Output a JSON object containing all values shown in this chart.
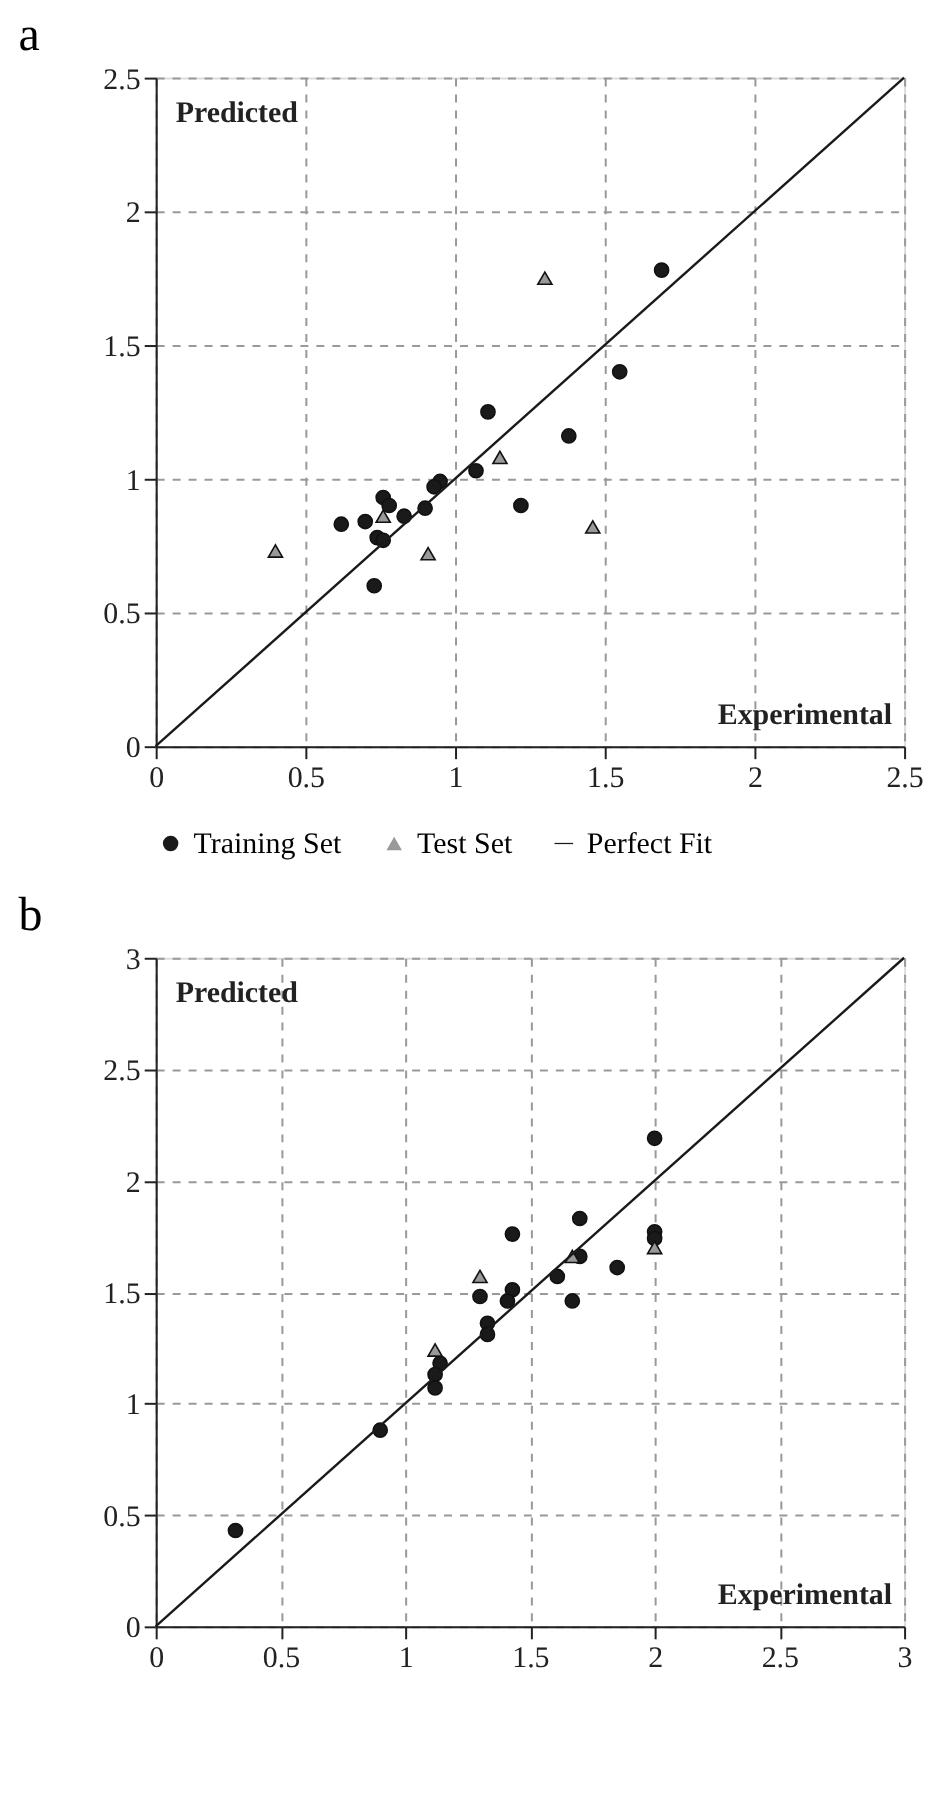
{
  "chart_data": [
    {
      "type": "scatter",
      "title": "a",
      "xlim": [
        0,
        2.5
      ],
      "ylim": [
        0,
        2.5
      ],
      "xticks": [
        0,
        0.5,
        1,
        1.5,
        2,
        2.5
      ],
      "yticks": [
        0,
        0.5,
        1,
        1.5,
        2,
        2.5
      ],
      "grid": true,
      "legend": "bottom",
      "annotations": [
        "Predicted",
        "Experimental"
      ],
      "series": [
        {
          "name": "Training Set",
          "marker": "circle",
          "color": "#1a1a1a",
          "x": [
            1.69,
            1.55,
            1.11,
            1.38,
            1.07,
            0.95,
            0.93,
            1.22,
            0.9,
            0.83,
            0.76,
            0.78,
            0.7,
            0.62,
            0.74,
            0.76,
            0.73
          ],
          "values": [
            1.78,
            1.4,
            1.25,
            1.16,
            1.03,
            0.99,
            0.97,
            0.9,
            0.89,
            0.86,
            0.93,
            0.9,
            0.84,
            0.83,
            0.78,
            0.77,
            0.6
          ]
        },
        {
          "name": "Test Set",
          "marker": "triangle",
          "color": "#999999",
          "x": [
            1.3,
            1.15,
            0.76,
            1.46,
            0.91,
            0.4
          ],
          "values": [
            1.75,
            1.08,
            0.86,
            0.82,
            0.72,
            0.73
          ]
        },
        {
          "name": "Perfect Fit",
          "type": "line",
          "marker": "none",
          "color": "#1a1a1a",
          "x": [
            0,
            2.5
          ],
          "values": [
            0,
            2.5
          ]
        }
      ]
    },
    {
      "type": "scatter",
      "title": "b",
      "xlim": [
        0,
        3
      ],
      "ylim": [
        0,
        3
      ],
      "xticks": [
        0,
        0.5,
        1,
        1.5,
        2,
        2.5,
        3
      ],
      "yticks": [
        0,
        0.5,
        1,
        1.5,
        2,
        2.5,
        3
      ],
      "grid": true,
      "annotations": [
        "Predicted",
        "Experimental"
      ],
      "series": [
        {
          "marker": "circle",
          "color": "#1a1a1a",
          "x": [
            2.0,
            2.0,
            2.0,
            1.7,
            1.7,
            1.43,
            1.85,
            1.61,
            1.67,
            1.43,
            1.41,
            1.3,
            1.33,
            1.33,
            1.14,
            1.12,
            1.12,
            0.9,
            0.32
          ],
          "values": [
            2.19,
            1.77,
            1.74,
            1.83,
            1.66,
            1.76,
            1.61,
            1.57,
            1.46,
            1.51,
            1.46,
            1.48,
            1.36,
            1.31,
            1.18,
            1.13,
            1.07,
            0.88,
            0.43
          ]
        },
        {
          "marker": "triangle",
          "color": "#999999",
          "x": [
            1.12,
            1.3,
            1.67,
            2.0
          ],
          "values": [
            1.24,
            1.57,
            1.66,
            1.7
          ]
        },
        {
          "type": "line",
          "marker": "none",
          "color": "#1a1a1a",
          "x": [
            0,
            3
          ],
          "values": [
            0,
            3
          ]
        }
      ]
    }
  ]
}
